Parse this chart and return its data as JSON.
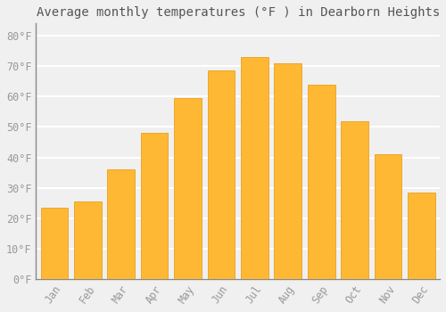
{
  "title": "Average monthly temperatures (°F ) in Dearborn Heights",
  "months": [
    "Jan",
    "Feb",
    "Mar",
    "Apr",
    "May",
    "Jun",
    "Jul",
    "Aug",
    "Sep",
    "Oct",
    "Nov",
    "Dec"
  ],
  "values": [
    23.5,
    25.5,
    36,
    48,
    59.5,
    68.5,
    73,
    71,
    64,
    52,
    41,
    28.5
  ],
  "bar_color": "#FFB833",
  "bar_edge_color": "#E8A020",
  "background_color": "#f0f0f0",
  "plot_bg_color": "#f0f0f0",
  "grid_color": "#ffffff",
  "ytick_labels": [
    "0°F",
    "10°F",
    "20°F",
    "30°F",
    "40°F",
    "50°F",
    "60°F",
    "70°F",
    "80°F"
  ],
  "ytick_values": [
    0,
    10,
    20,
    30,
    40,
    50,
    60,
    70,
    80
  ],
  "ylim": [
    0,
    84
  ],
  "title_fontsize": 10,
  "tick_fontsize": 8.5,
  "tick_color": "#999999",
  "title_color": "#555555",
  "spine_color": "#888888",
  "bar_width": 0.82
}
